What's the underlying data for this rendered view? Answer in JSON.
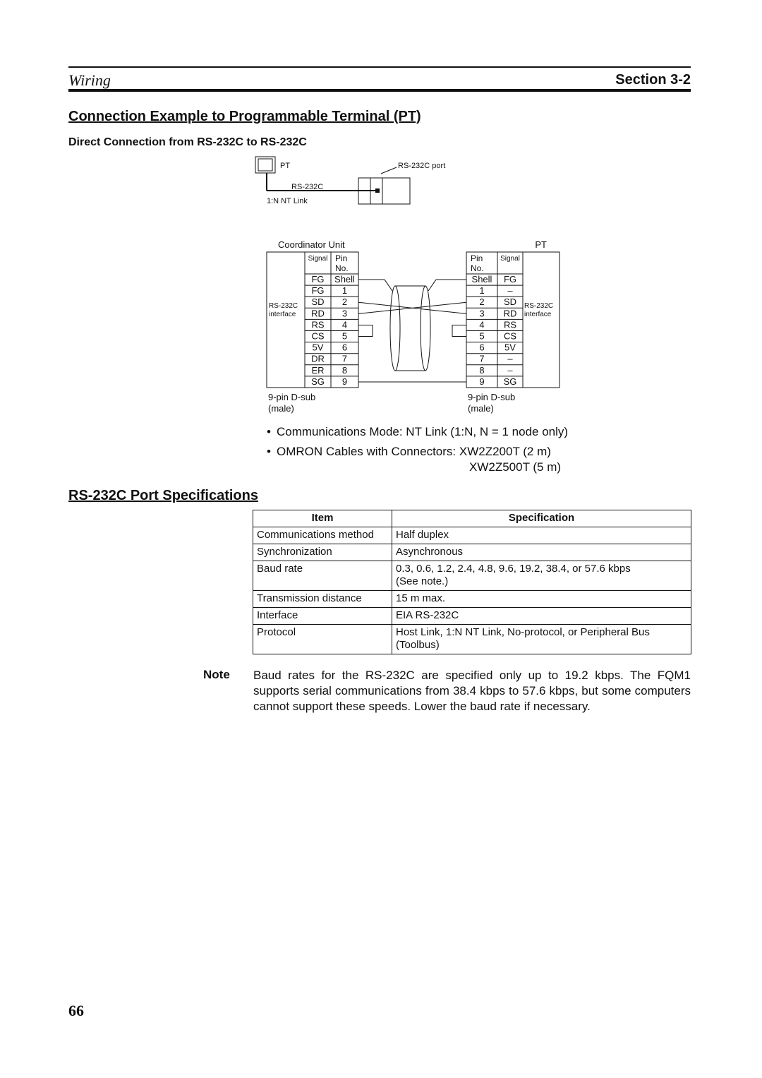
{
  "header": {
    "section_name": "Wiring",
    "section_number": "Section 3-2"
  },
  "heading": "Connection Example to Programmable Terminal (PT)",
  "subheading": "Direct Connection from RS-232C to RS-232C",
  "connection_diagram": {
    "pt_label": "PT",
    "port_label": "RS-232C port",
    "cable_label": "RS-232C",
    "link_label": "1:N NT Link"
  },
  "wiring_diagram": {
    "left": {
      "title": "Coordinator Unit",
      "header_signal": "Signal",
      "header_pin": [
        "Pin",
        "No."
      ],
      "interface": [
        "RS-232C",
        "interface"
      ],
      "rows": [
        [
          "FG",
          "Shell"
        ],
        [
          "FG",
          "1"
        ],
        [
          "SD",
          "2"
        ],
        [
          "RD",
          "3"
        ],
        [
          "RS",
          "4"
        ],
        [
          "CS",
          "5"
        ],
        [
          "5V",
          "6"
        ],
        [
          "DR",
          "7"
        ],
        [
          "ER",
          "8"
        ],
        [
          "SG",
          "9"
        ]
      ],
      "connector": [
        "9-pin D-sub",
        "(male)"
      ]
    },
    "right": {
      "title": "PT",
      "header_signal": "Signal",
      "header_pin": [
        "Pin",
        "No."
      ],
      "interface": [
        "RS-232C",
        "interface"
      ],
      "rows": [
        [
          "FG",
          "Shell"
        ],
        [
          "–",
          "1"
        ],
        [
          "SD",
          "2"
        ],
        [
          "RD",
          "3"
        ],
        [
          "RS",
          "4"
        ],
        [
          "CS",
          "5"
        ],
        [
          "5V",
          "6"
        ],
        [
          "–",
          "7"
        ],
        [
          "–",
          "8"
        ],
        [
          "SG",
          "9"
        ]
      ],
      "connector": [
        "9-pin D-sub",
        "(male)"
      ]
    }
  },
  "bullets": [
    [
      "Communications Mode: NT Link (1:N, N = 1 node only)"
    ],
    [
      "OMRON Cables with Connectors: XW2Z200T (2 m)",
      "XW2Z500T (5 m)"
    ]
  ],
  "spec_heading": "RS-232C Port Specifications",
  "table": {
    "header": [
      "Item",
      "Specification"
    ],
    "rows": [
      [
        "Communications method",
        [
          "Half duplex"
        ]
      ],
      [
        "Synchronization",
        [
          "Asynchronous"
        ]
      ],
      [
        "Baud rate",
        [
          "0.3, 0.6, 1.2, 2.4, 4.8, 9.6, 19.2, 38.4, or 57.6 kbps",
          "(See note.)"
        ]
      ],
      [
        "Transmission distance",
        [
          "15 m max."
        ]
      ],
      [
        "Interface",
        [
          "EIA RS-232C"
        ]
      ],
      [
        "Protocol",
        [
          "Host Link, 1:N NT Link, No-protocol, or Peripheral Bus",
          "(Toolbus)"
        ]
      ]
    ]
  },
  "note": {
    "label": "Note",
    "text": "Baud rates for the RS-232C are specified only up to 19.2 kbps. The FQM1 supports serial communications from 38.4 kbps to 57.6 kbps, but some computers cannot support these speeds. Lower the baud rate if necessary."
  },
  "page_number": "66"
}
